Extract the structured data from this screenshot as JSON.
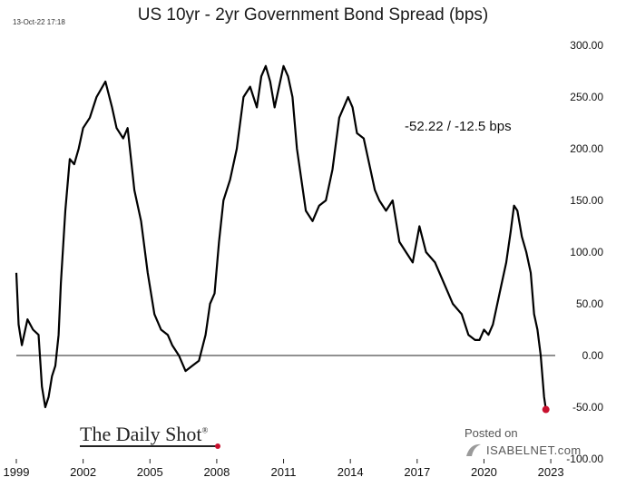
{
  "header": {
    "timestamp": "13-Oct-22 17:18",
    "title": "US 10yr - 2yr Government Bond Spread (bps)"
  },
  "annotation": "-52.22  /  -12.5 bps",
  "branding": {
    "source": "The Daily Shot",
    "source_mark": "®",
    "posted_on": "Posted on",
    "site": "ISABELNET.com",
    "accent_color": "#c8102e"
  },
  "chart_data": {
    "type": "line",
    "title": "US 10yr - 2yr Government Bond Spread (bps)",
    "xlabel": "",
    "ylabel": "",
    "xlim": [
      1999.0,
      2023.2
    ],
    "ylim": [
      -100,
      300
    ],
    "grid": false,
    "y_axis_side": "right",
    "x_ticks": [
      "1999",
      "2002",
      "2005",
      "2008",
      "2011",
      "2014",
      "2017",
      "2020",
      "2023"
    ],
    "y_ticks": [
      "300.00",
      "250.00",
      "200.00",
      "150.00",
      "100.00",
      "50.00",
      "0.00",
      "-50.00",
      "-100.00"
    ],
    "reference_line_y": 0,
    "line_color": "#000000",
    "end_marker_color": "#c8102e",
    "series": [
      {
        "x": [
          1999.0,
          1999.1,
          1999.25,
          1999.5,
          1999.75,
          2000.0,
          2000.15,
          2000.3,
          2000.45,
          2000.6,
          2000.75,
          2000.9,
          2001.0,
          2001.2,
          2001.4,
          2001.6,
          2001.8,
          2002.0,
          2002.3,
          2002.6,
          2003.0,
          2003.3,
          2003.5,
          2003.8,
          2004.0,
          2004.3,
          2004.6,
          2004.9,
          2005.2,
          2005.5,
          2005.8,
          2006.0,
          2006.3,
          2006.6,
          2006.9,
          2007.2,
          2007.5,
          2007.7,
          2007.9,
          2008.1,
          2008.3,
          2008.6,
          2008.9,
          2009.2,
          2009.5,
          2009.8,
          2010.0,
          2010.2,
          2010.4,
          2010.6,
          2010.8,
          2011.0,
          2011.2,
          2011.4,
          2011.6,
          2011.8,
          2012.0,
          2012.3,
          2012.6,
          2012.9,
          2013.2,
          2013.5,
          2013.7,
          2013.9,
          2014.1,
          2014.3,
          2014.6,
          2014.9,
          2015.1,
          2015.3,
          2015.6,
          2015.9,
          2016.2,
          2016.5,
          2016.8,
          2017.1,
          2017.4,
          2017.8,
          2018.2,
          2018.6,
          2019.0,
          2019.3,
          2019.6,
          2019.8,
          2020.0,
          2020.2,
          2020.4,
          2020.7,
          2021.0,
          2021.2,
          2021.35,
          2021.5,
          2021.7,
          2021.9,
          2022.1,
          2022.25,
          2022.4,
          2022.55,
          2022.7,
          2022.78
        ],
        "y": [
          80,
          30,
          10,
          35,
          25,
          20,
          -30,
          -50,
          -40,
          -20,
          -10,
          20,
          70,
          140,
          190,
          185,
          200,
          220,
          230,
          250,
          265,
          240,
          220,
          210,
          220,
          160,
          130,
          80,
          40,
          25,
          20,
          10,
          0,
          -15,
          -10,
          -5,
          20,
          50,
          60,
          110,
          150,
          170,
          200,
          250,
          260,
          240,
          270,
          280,
          265,
          240,
          260,
          280,
          270,
          250,
          200,
          170,
          140,
          130,
          145,
          150,
          180,
          230,
          240,
          250,
          240,
          215,
          210,
          180,
          160,
          150,
          140,
          150,
          110,
          100,
          90,
          125,
          100,
          90,
          70,
          50,
          40,
          20,
          15,
          15,
          25,
          20,
          30,
          60,
          90,
          120,
          145,
          140,
          115,
          100,
          80,
          40,
          25,
          0,
          -40,
          -52.22
        ]
      }
    ]
  }
}
